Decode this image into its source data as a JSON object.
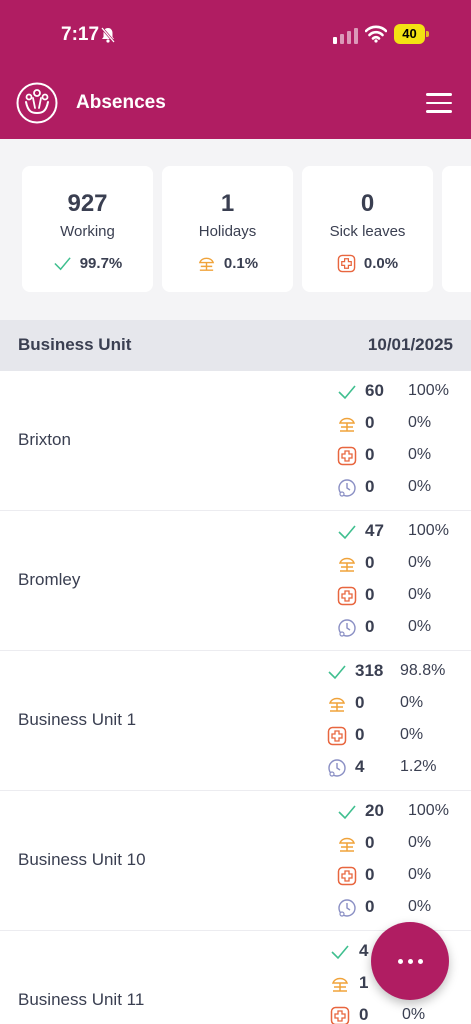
{
  "status_bar": {
    "time": "7:17",
    "battery": "40"
  },
  "header": {
    "title": "Absences"
  },
  "summary": [
    {
      "value": "927",
      "label": "Working",
      "pct": "99.7%",
      "icon": "check-icon"
    },
    {
      "value": "1",
      "label": "Holidays",
      "pct": "0.1%",
      "icon": "holiday-icon"
    },
    {
      "value": "0",
      "label": "Sick leaves",
      "pct": "0.0%",
      "icon": "sick-leave-icon"
    }
  ],
  "table": {
    "col_left": "Business Unit",
    "col_right": "10/01/2025",
    "rows": [
      {
        "name": "Brixton",
        "working": "60",
        "working_pct": "100%",
        "holidays": "0",
        "holidays_pct": "0%",
        "sick": "0",
        "sick_pct": "0%",
        "other": "0",
        "other_pct": "0%"
      },
      {
        "name": "Bromley",
        "working": "47",
        "working_pct": "100%",
        "holidays": "0",
        "holidays_pct": "0%",
        "sick": "0",
        "sick_pct": "0%",
        "other": "0",
        "other_pct": "0%"
      },
      {
        "name": "Business Unit 1",
        "working": "318",
        "working_pct": "98.8%",
        "holidays": "0",
        "holidays_pct": "0%",
        "sick": "0",
        "sick_pct": "0%",
        "other": "4",
        "other_pct": "1.2%"
      },
      {
        "name": "Business Unit 10",
        "working": "20",
        "working_pct": "100%",
        "holidays": "0",
        "holidays_pct": "0%",
        "sick": "0",
        "sick_pct": "0%",
        "other": "0",
        "other_pct": "0%"
      },
      {
        "name": "Business Unit 11",
        "working": "4",
        "working_pct": "%",
        "holidays": "1",
        "holidays_pct": "%",
        "sick": "0",
        "sick_pct": "0%",
        "other": "",
        "other_pct": ""
      }
    ]
  },
  "colors": {
    "brand": "#b01d62",
    "check": "#3fbf8f",
    "holiday": "#f0a33a",
    "sick": "#e8663f",
    "other": "#8a8fc4"
  }
}
